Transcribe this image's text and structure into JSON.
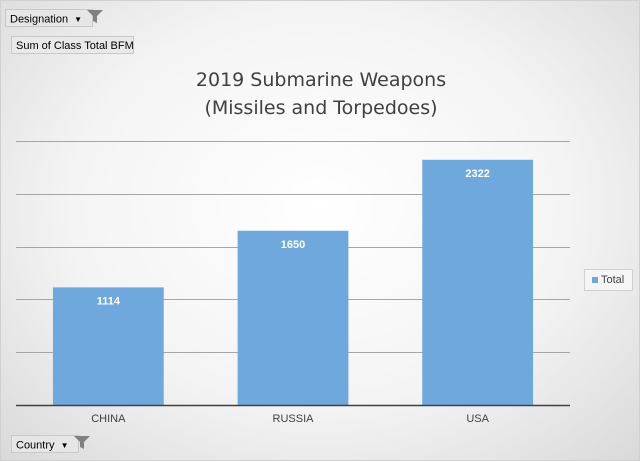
{
  "pivot": {
    "filter_field": "Designation",
    "value_field": "Sum of Class Total BFM",
    "axis_field": "Country"
  },
  "chart_data": {
    "type": "bar",
    "title_lines": [
      "2019 Submarine Weapons",
      "(Missiles and Torpedoes)"
    ],
    "categories": [
      "CHINA",
      "RUSSIA",
      "USA"
    ],
    "series": [
      {
        "name": "Total",
        "values": [
          1114,
          1650,
          2322
        ],
        "color": "#6fa8dc"
      }
    ],
    "ylim": [
      0,
      2500
    ],
    "gridlines": [
      500,
      1000,
      1500,
      2000,
      2500
    ],
    "grid": true,
    "y_tick_labels": false,
    "legend_position": "right"
  },
  "colors": {
    "bar": "#6fa8dc",
    "gridline": "#a6a6a6",
    "axis": "#404040"
  }
}
